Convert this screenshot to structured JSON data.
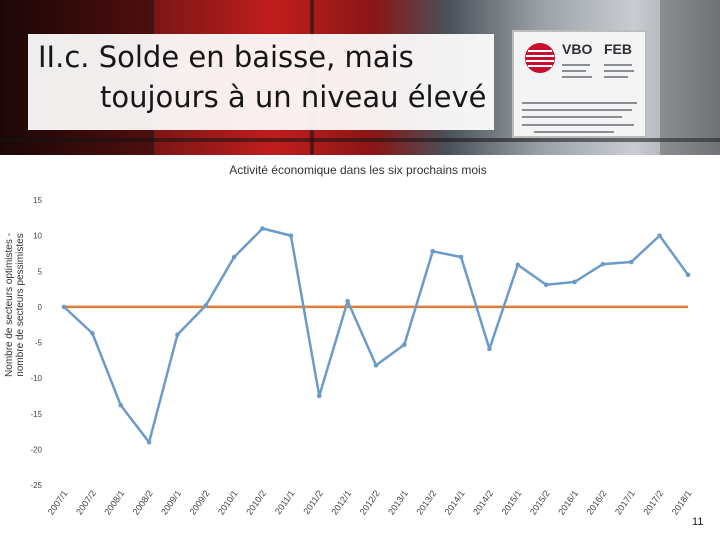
{
  "slide": {
    "title_line1": "II.c. Solde en baisse, mais",
    "title_line2": "toujours à un niveau élevé",
    "page_number": "11",
    "sign": {
      "brand_left": "VBO",
      "brand_right": "FEB"
    }
  },
  "chart_data": {
    "type": "line",
    "title": "Activité économique dans les six prochains mois",
    "ylabel_line1": "Nombre de secteurs optimistes -",
    "ylabel_line2": "nombre de secteurs pessimistes",
    "xlabel": "",
    "ylim": [
      -25,
      15
    ],
    "yticks": [
      15,
      10,
      5,
      0,
      -5,
      -10,
      -15,
      -20,
      -25
    ],
    "categories": [
      "2007/1",
      "2007/2",
      "2008/1",
      "2008/2",
      "2009/1",
      "2009/2",
      "2010/1",
      "2010/2",
      "2011/1",
      "2011/2",
      "2012/1",
      "2012/2",
      "2013/1",
      "2013/2",
      "2014/1",
      "2014/2",
      "2015/1",
      "2015/2",
      "2016/1",
      "2016/2",
      "2017/1",
      "2017/2",
      "2018/1"
    ],
    "series": [
      {
        "color": "#6b9bc9",
        "values": [
          0,
          -3.7,
          -13.8,
          -19,
          -3.9,
          0.2,
          7,
          11,
          10,
          -12.5,
          0.8,
          -8.2,
          -5.3,
          7.8,
          7,
          -5.9,
          5.9,
          3.1,
          3.5,
          6,
          6.3,
          10,
          4.5
        ]
      },
      {
        "color": "#e07b39",
        "values": [
          0,
          0,
          0,
          0,
          0,
          0,
          0,
          0,
          0,
          0,
          0,
          0,
          0,
          0,
          0,
          0,
          0,
          0,
          0,
          0,
          0,
          0,
          0
        ]
      }
    ],
    "grid": false,
    "legend": "none"
  }
}
